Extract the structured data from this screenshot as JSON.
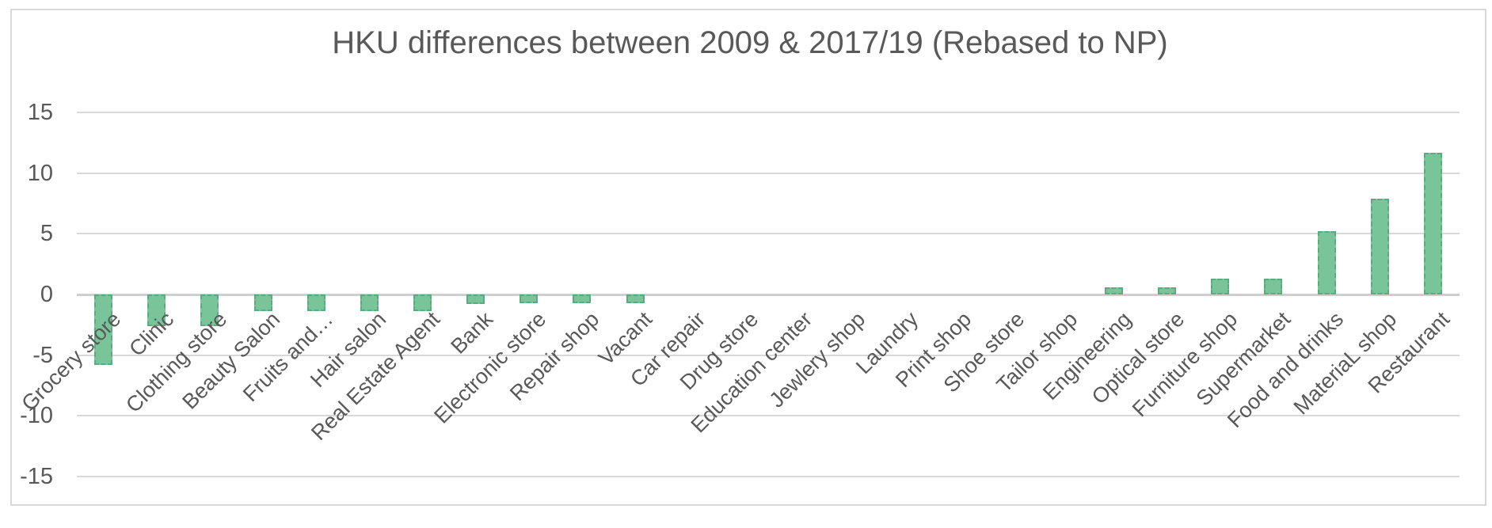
{
  "chart_data": {
    "type": "bar",
    "title": "HKU differences between 2009 & 2017/19 (Rebased to NP)",
    "categories": [
      "Grocery store",
      "Clinic",
      "Clothing store",
      "Beauty Salon",
      "Fruits and…",
      "Hair salon",
      "Real Estate Agent",
      "Bank",
      "Electronic store",
      "Repair shop",
      "Vacant",
      "Car repair",
      "Drug store",
      "Education center",
      "Jewlery shop",
      "Laundry",
      "Print shop",
      "Shoe store",
      "Tailor shop",
      "Engineering",
      "Optical store",
      "Furniture shop",
      "Supermarket",
      "Food and drinks",
      "MateriaL shop",
      "Restaurant"
    ],
    "values": [
      -5.8,
      -2.6,
      -2.6,
      -1.4,
      -1.4,
      -1.4,
      -1.4,
      -0.8,
      -0.7,
      -0.7,
      -0.7,
      0,
      0,
      0,
      0,
      0,
      0,
      0,
      0,
      0.6,
      0.6,
      1.3,
      1.3,
      5.2,
      7.9,
      11.7
    ],
    "y_ticks": [
      15,
      10,
      5,
      0,
      -5,
      -10,
      -15
    ],
    "ylim": [
      -15,
      15
    ],
    "xlabel": "",
    "ylabel": "",
    "grid": "horizontal",
    "legend": "none",
    "colors": {
      "bar_fill": "#7ac49a",
      "bar_border": "#57ad7d",
      "gridline": "#d9d9d9",
      "zero_axis_line": "#cfcfcf",
      "text": "#595959",
      "frame_border": "#d9d9d9"
    }
  }
}
